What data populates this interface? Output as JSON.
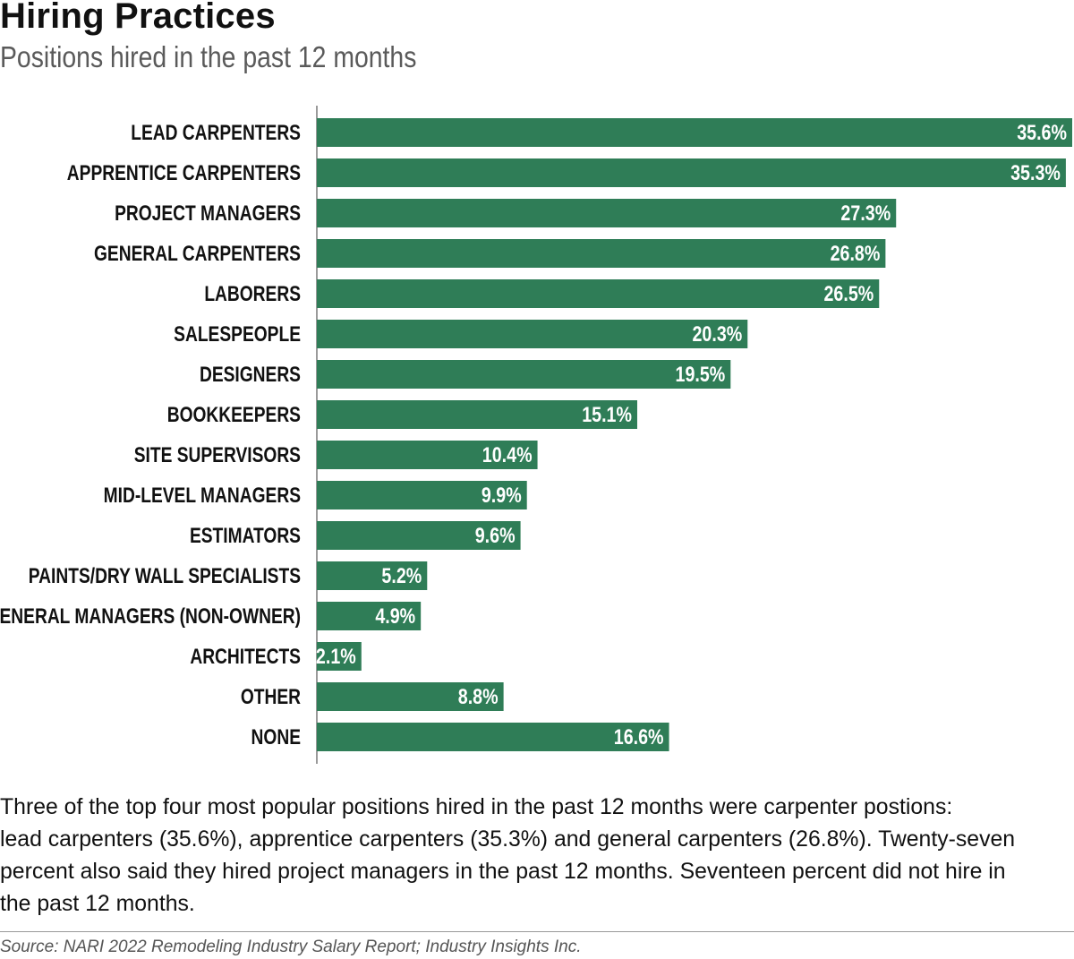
{
  "header": {
    "title": "Hiring Practices",
    "subtitle": "Positions hired in the past 12 months"
  },
  "colors": {
    "bar": "#2f7d57",
    "bar_text": "#ffffff",
    "axis": "#9a9a9a"
  },
  "chart_data": {
    "type": "bar",
    "orientation": "horizontal",
    "title": "Hiring Practices",
    "subtitle": "Positions hired in the past 12 months",
    "categories": [
      "LEAD CARPENTERS",
      "APPRENTICE CARPENTERS",
      "PROJECT MANAGERS",
      "GENERAL CARPENTERS",
      "LABORERS",
      "SALESPEOPLE",
      "DESIGNERS",
      "BOOKKEEPERS",
      "SITE SUPERVISORS",
      "MID-LEVEL MANAGERS",
      "ESTIMATORS",
      "PAINTS/DRY WALL SPECIALISTS",
      "GENERAL MANAGERS (NON-OWNER)",
      "ARCHITECTS",
      "OTHER",
      "NONE"
    ],
    "values": [
      35.6,
      35.3,
      27.3,
      26.8,
      26.5,
      20.3,
      19.5,
      15.1,
      10.4,
      9.9,
      9.6,
      5.2,
      4.9,
      2.1,
      8.8,
      16.6
    ],
    "data_labels": [
      "35.6%",
      "35.3%",
      "27.3%",
      "26.8%",
      "26.5%",
      "20.3%",
      "19.5%",
      "15.1%",
      "10.4%",
      "9.9%",
      "9.6%",
      "5.2%",
      "4.9%",
      "2.1%",
      "8.8%",
      "16.6%"
    ],
    "unit": "%",
    "xlim": [
      0,
      35.6
    ],
    "grid": false,
    "legend": "none"
  },
  "caption": {
    "lines": [
      "Three of the top four most popular positions hired in the past 12 months were carpenter postions:",
      "lead carpenters (35.6%), apprentice carpenters (35.3%) and general carpenters (26.8%). Twenty-seven",
      "percent also said they hired project managers in the past 12 months. Seventeen percent did not hire in",
      "the past 12 months."
    ]
  },
  "source": {
    "text": "Source: NARI 2022 Remodeling Industry Salary Report; Industry Insights Inc."
  }
}
